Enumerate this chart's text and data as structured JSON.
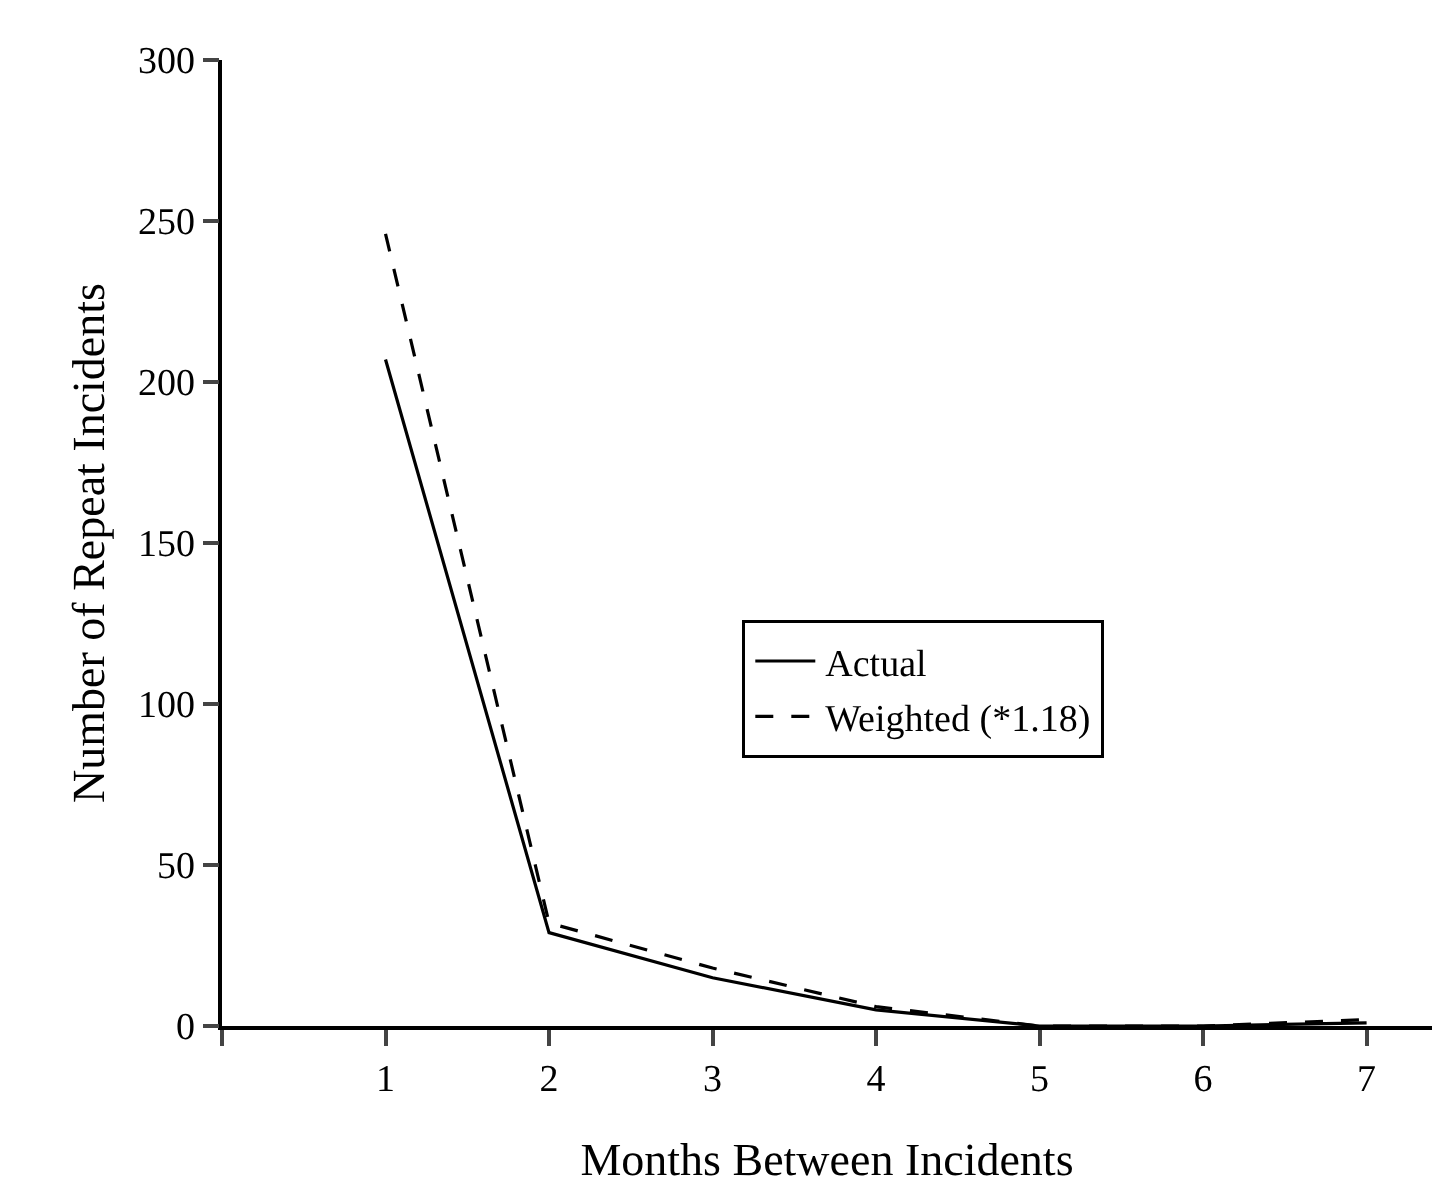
{
  "chart_data": {
    "type": "line",
    "xlabel": "Months Between Incidents",
    "ylabel": "Number of Repeat Incidents",
    "x": [
      1,
      2,
      3,
      4,
      5,
      6,
      7
    ],
    "series": [
      {
        "name": "Actual",
        "color": "#000000",
        "line_style": "solid",
        "values": [
          207,
          29,
          15,
          5,
          0,
          0,
          1
        ]
      },
      {
        "name": "Weighted (*1.18)",
        "color": "#000000",
        "line_style": "dashed",
        "values": [
          246,
          32,
          18,
          6,
          0,
          0,
          2
        ]
      }
    ],
    "xlim": [
      0,
      7.4
    ],
    "xticks": [
      {
        "value": 0,
        "label": null
      },
      1,
      2,
      3,
      4,
      5,
      6,
      7
    ],
    "ylim": [
      0,
      300
    ],
    "yticks": [
      0,
      50,
      100,
      150,
      200,
      250,
      300
    ],
    "grid": false,
    "legend": "right",
    "marker": "none"
  }
}
